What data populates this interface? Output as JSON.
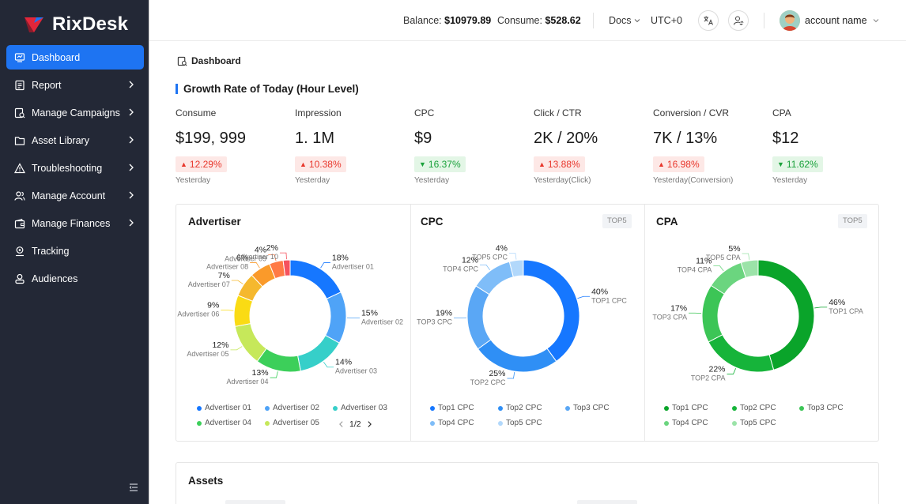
{
  "brand": {
    "name": "RixDesk"
  },
  "sidebar": {
    "items": [
      {
        "label": "Dashboard",
        "icon": "dashboard-icon",
        "active": true,
        "chevron": false
      },
      {
        "label": "Report",
        "icon": "report-icon",
        "active": false,
        "chevron": true
      },
      {
        "label": "Manage Campaigns",
        "icon": "campaign-icon",
        "active": false,
        "chevron": true
      },
      {
        "label": "Asset Library",
        "icon": "folder-icon",
        "active": false,
        "chevron": true
      },
      {
        "label": "Troubleshooting",
        "icon": "warning-icon",
        "active": false,
        "chevron": true
      },
      {
        "label": "Manage Account",
        "icon": "users-icon",
        "active": false,
        "chevron": true
      },
      {
        "label": "Manage Finances",
        "icon": "wallet-icon",
        "active": false,
        "chevron": true
      },
      {
        "label": "Tracking",
        "icon": "tracking-icon",
        "active": false,
        "chevron": false
      },
      {
        "label": "Audiences",
        "icon": "audience-icon",
        "active": false,
        "chevron": false
      }
    ]
  },
  "header": {
    "balance_label": "Balance:",
    "balance_value": "$10979.89",
    "consume_label": "Consume:",
    "consume_value": "$528.62",
    "docs": "Docs",
    "timezone": "UTC+0",
    "account_name": "account name"
  },
  "page": {
    "breadcrumb": "Dashboard",
    "section_title": "Growth Rate of Today  (Hour Level)"
  },
  "metrics": [
    {
      "label": "Consume",
      "value": "$199, 999",
      "change": "12.29%",
      "direction": "up",
      "sub": "Yesterday"
    },
    {
      "label": "Impression",
      "value": "1. 1M",
      "change": "10.38%",
      "direction": "up",
      "sub": "Yesterday"
    },
    {
      "label": "CPC",
      "value": "$9",
      "change": "16.37%",
      "direction": "down",
      "sub": "Yesterday"
    },
    {
      "label": "Click / CTR",
      "value": "2K / 20%",
      "change": "13.88%",
      "direction": "up",
      "sub": "Yesterday(Click)"
    },
    {
      "label": "Conversion / CVR",
      "value": "7K / 13%",
      "change": "16.98%",
      "direction": "up",
      "sub": "Yesterday(Conversion)"
    },
    {
      "label": "CPA",
      "value": "$12",
      "change": "11.62%",
      "direction": "down",
      "sub": "Yesterday"
    }
  ],
  "colors": {
    "accent": "#1e74f2",
    "up": "#e8372c",
    "down": "#19a13a",
    "sidebar_bg": "#232836"
  },
  "chart_data": [
    {
      "type": "pie",
      "title": "Advertiser",
      "categories": [
        "Advertiser 01",
        "Advertiser 02",
        "Advertiser 03",
        "Advertiser 04",
        "Advertiser 05",
        "Advertiser 06",
        "Advertiser 07",
        "Advertiser 08",
        "Advertiser 09",
        "Advertiser 10"
      ],
      "values": [
        18,
        15,
        14,
        13,
        12,
        9,
        7,
        6,
        4,
        2
      ],
      "labels": [
        "18%",
        "15%",
        "14%",
        "13%",
        "12%",
        "9%",
        "7%",
        "6%",
        "4%",
        "2%"
      ],
      "colors": [
        "#1677ff",
        "#4fa3f7",
        "#36cfc9",
        "#3ccf5a",
        "#c6e85a",
        "#fadb14",
        "#f5b82e",
        "#fa9a2a",
        "#ff7a45",
        "#f5525e"
      ],
      "legend": [
        "Advertiser 01",
        "Advertiser 02",
        "Advertiser 03",
        "Advertiser 04",
        "Advertiser 05"
      ],
      "pager": "1/2"
    },
    {
      "type": "pie",
      "title": "CPC",
      "tag": "TOP5",
      "categories": [
        "TOP1 CPC",
        "TOP2 CPC",
        "TOP3 CPC",
        "TOP4 CPC",
        "TOP5 CPC"
      ],
      "values": [
        40,
        25,
        19,
        12,
        4
      ],
      "labels": [
        "40%",
        "25%",
        "19%",
        "12%",
        "4%"
      ],
      "colors": [
        "#1677ff",
        "#2f8ff5",
        "#5aa7f5",
        "#7fbdf8",
        "#b2d8fb"
      ],
      "legend": [
        "Top1 CPC",
        "Top2 CPC",
        "Top3 CPC",
        "Top4 CPC",
        "Top5 CPC"
      ]
    },
    {
      "type": "pie",
      "title": "CPA",
      "tag": "TOP5",
      "categories": [
        "TOP1 CPA",
        "TOP2 CPA",
        "TOP3 CPA",
        "TOP4 CPA",
        "TOP5 CPA"
      ],
      "values": [
        46,
        22,
        17,
        11,
        5
      ],
      "labels": [
        "46%",
        "22%",
        "17%",
        "11%",
        "5%"
      ],
      "colors": [
        "#0aa42a",
        "#16b43a",
        "#3cc556",
        "#6bd57f",
        "#9be3a8"
      ],
      "legend": [
        "Top1 CPC",
        "Top2 CPC",
        "Top3 CPC",
        "Top4 CPC",
        "Top5 CPC"
      ]
    }
  ],
  "assets": {
    "title": "Assets"
  }
}
